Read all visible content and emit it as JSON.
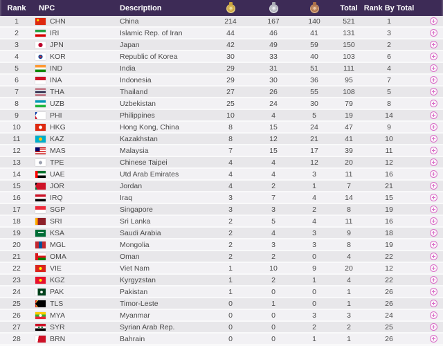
{
  "table": {
    "headers": {
      "rank": "Rank",
      "npc": "NPC",
      "description": "Description",
      "gold_icon": "gold-medal-icon",
      "silver_icon": "silver-medal-icon",
      "bronze_icon": "bronze-medal-icon",
      "total": "Total",
      "rank_by_total": "Rank By Total"
    },
    "rows": [
      {
        "rank": 1,
        "npc": "CHN",
        "description": "China",
        "gold": 214,
        "silver": 167,
        "bronze": 140,
        "total": 521,
        "rank_by_total": 1
      },
      {
        "rank": 2,
        "npc": "IRI",
        "description": "Islamic Rep. of Iran",
        "gold": 44,
        "silver": 46,
        "bronze": 41,
        "total": 131,
        "rank_by_total": 3
      },
      {
        "rank": 3,
        "npc": "JPN",
        "description": "Japan",
        "gold": 42,
        "silver": 49,
        "bronze": 59,
        "total": 150,
        "rank_by_total": 2
      },
      {
        "rank": 4,
        "npc": "KOR",
        "description": "Republic of Korea",
        "gold": 30,
        "silver": 33,
        "bronze": 40,
        "total": 103,
        "rank_by_total": 6
      },
      {
        "rank": 5,
        "npc": "IND",
        "description": "India",
        "gold": 29,
        "silver": 31,
        "bronze": 51,
        "total": 111,
        "rank_by_total": 4
      },
      {
        "rank": 6,
        "npc": "INA",
        "description": "Indonesia",
        "gold": 29,
        "silver": 30,
        "bronze": 36,
        "total": 95,
        "rank_by_total": 7
      },
      {
        "rank": 7,
        "npc": "THA",
        "description": "Thailand",
        "gold": 27,
        "silver": 26,
        "bronze": 55,
        "total": 108,
        "rank_by_total": 5
      },
      {
        "rank": 8,
        "npc": "UZB",
        "description": "Uzbekistan",
        "gold": 25,
        "silver": 24,
        "bronze": 30,
        "total": 79,
        "rank_by_total": 8
      },
      {
        "rank": 9,
        "npc": "PHI",
        "description": "Philippines",
        "gold": 10,
        "silver": 4,
        "bronze": 5,
        "total": 19,
        "rank_by_total": 14
      },
      {
        "rank": 10,
        "npc": "HKG",
        "description": "Hong Kong, China",
        "gold": 8,
        "silver": 15,
        "bronze": 24,
        "total": 47,
        "rank_by_total": 9
      },
      {
        "rank": 11,
        "npc": "KAZ",
        "description": "Kazakhstan",
        "gold": 8,
        "silver": 12,
        "bronze": 21,
        "total": 41,
        "rank_by_total": 10
      },
      {
        "rank": 12,
        "npc": "MAS",
        "description": "Malaysia",
        "gold": 7,
        "silver": 15,
        "bronze": 17,
        "total": 39,
        "rank_by_total": 11
      },
      {
        "rank": 13,
        "npc": "TPE",
        "description": "Chinese Taipei",
        "gold": 4,
        "silver": 4,
        "bronze": 12,
        "total": 20,
        "rank_by_total": 12
      },
      {
        "rank": 14,
        "npc": "UAE",
        "description": "Utd Arab Emirates",
        "gold": 4,
        "silver": 4,
        "bronze": 3,
        "total": 11,
        "rank_by_total": 16
      },
      {
        "rank": 15,
        "npc": "JOR",
        "description": "Jordan",
        "gold": 4,
        "silver": 2,
        "bronze": 1,
        "total": 7,
        "rank_by_total": 21
      },
      {
        "rank": 16,
        "npc": "IRQ",
        "description": "Iraq",
        "gold": 3,
        "silver": 7,
        "bronze": 4,
        "total": 14,
        "rank_by_total": 15
      },
      {
        "rank": 17,
        "npc": "SGP",
        "description": "Singapore",
        "gold": 3,
        "silver": 3,
        "bronze": 2,
        "total": 8,
        "rank_by_total": 19
      },
      {
        "rank": 18,
        "npc": "SRI",
        "description": "Sri Lanka",
        "gold": 2,
        "silver": 5,
        "bronze": 4,
        "total": 11,
        "rank_by_total": 16
      },
      {
        "rank": 19,
        "npc": "KSA",
        "description": "Saudi Arabia",
        "gold": 2,
        "silver": 4,
        "bronze": 3,
        "total": 9,
        "rank_by_total": 18
      },
      {
        "rank": 20,
        "npc": "MGL",
        "description": "Mongolia",
        "gold": 2,
        "silver": 3,
        "bronze": 3,
        "total": 8,
        "rank_by_total": 19
      },
      {
        "rank": 21,
        "npc": "OMA",
        "description": "Oman",
        "gold": 2,
        "silver": 2,
        "bronze": 0,
        "total": 4,
        "rank_by_total": 22
      },
      {
        "rank": 22,
        "npc": "VIE",
        "description": "Viet Nam",
        "gold": 1,
        "silver": 10,
        "bronze": 9,
        "total": 20,
        "rank_by_total": 12
      },
      {
        "rank": 23,
        "npc": "KGZ",
        "description": "Kyrgyzstan",
        "gold": 1,
        "silver": 2,
        "bronze": 1,
        "total": 4,
        "rank_by_total": 22
      },
      {
        "rank": 24,
        "npc": "PAK",
        "description": "Pakistan",
        "gold": 1,
        "silver": 0,
        "bronze": 0,
        "total": 1,
        "rank_by_total": 26
      },
      {
        "rank": 25,
        "npc": "TLS",
        "description": "Timor-Leste",
        "gold": 0,
        "silver": 1,
        "bronze": 0,
        "total": 1,
        "rank_by_total": 26
      },
      {
        "rank": 26,
        "npc": "MYA",
        "description": "Myanmar",
        "gold": 0,
        "silver": 0,
        "bronze": 3,
        "total": 3,
        "rank_by_total": 24
      },
      {
        "rank": 27,
        "npc": "SYR",
        "description": "Syrian Arab Rep.",
        "gold": 0,
        "silver": 0,
        "bronze": 2,
        "total": 2,
        "rank_by_total": 25
      },
      {
        "rank": 28,
        "npc": "BRN",
        "description": "Bahrain",
        "gold": 0,
        "silver": 0,
        "bronze": 1,
        "total": 1,
        "rank_by_total": 26
      }
    ]
  },
  "colors": {
    "header_bg": "#3d2b56",
    "header_text": "#ffffff",
    "row_odd": "#e8e7ea",
    "row_even": "#f2f1f4",
    "row_text": "#4a4a4a",
    "gold": "#d8b657",
    "silver": "#c3c5cc",
    "bronze": "#c28a62",
    "expand_icon": "#da70c8"
  }
}
